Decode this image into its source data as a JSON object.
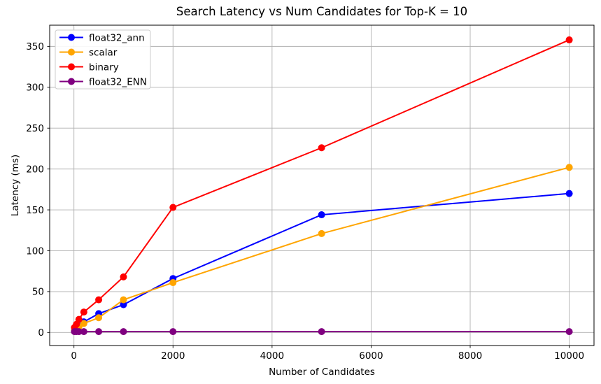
{
  "chart_data": {
    "type": "line",
    "title": "Search Latency vs Num Candidates for Top-K = 10",
    "xlabel": "Number of Candidates",
    "ylabel": "Latency (ms)",
    "x": [
      10,
      50,
      100,
      200,
      500,
      1000,
      2000,
      5000,
      10000
    ],
    "series": [
      {
        "name": "float32_ann",
        "color": "#0000ff",
        "values": [
          2,
          4,
          8,
          13,
          23,
          34,
          66,
          144,
          170
        ]
      },
      {
        "name": "scalar",
        "color": "#ffa500",
        "values": [
          2,
          4,
          7,
          11,
          18,
          40,
          61,
          121,
          202
        ]
      },
      {
        "name": "binary",
        "color": "#ff0000",
        "values": [
          6,
          10,
          16,
          25,
          40,
          68,
          153,
          226,
          358
        ]
      },
      {
        "name": "float32_ENN",
        "color": "#800080",
        "values": [
          1,
          1,
          1,
          1,
          1,
          1,
          1,
          1,
          1
        ]
      }
    ],
    "x_ticks": [
      0,
      2000,
      4000,
      6000,
      8000,
      10000
    ],
    "y_ticks": [
      0,
      50,
      100,
      150,
      200,
      250,
      300,
      350
    ],
    "xlim": [
      -490,
      10500
    ],
    "ylim": [
      -16,
      376
    ],
    "grid": true,
    "grid_color": "#b0b0b0",
    "axis_color": "#000000",
    "legend_position": "upper-left",
    "marker": "circle",
    "line_width": 2,
    "marker_radius": 5
  }
}
